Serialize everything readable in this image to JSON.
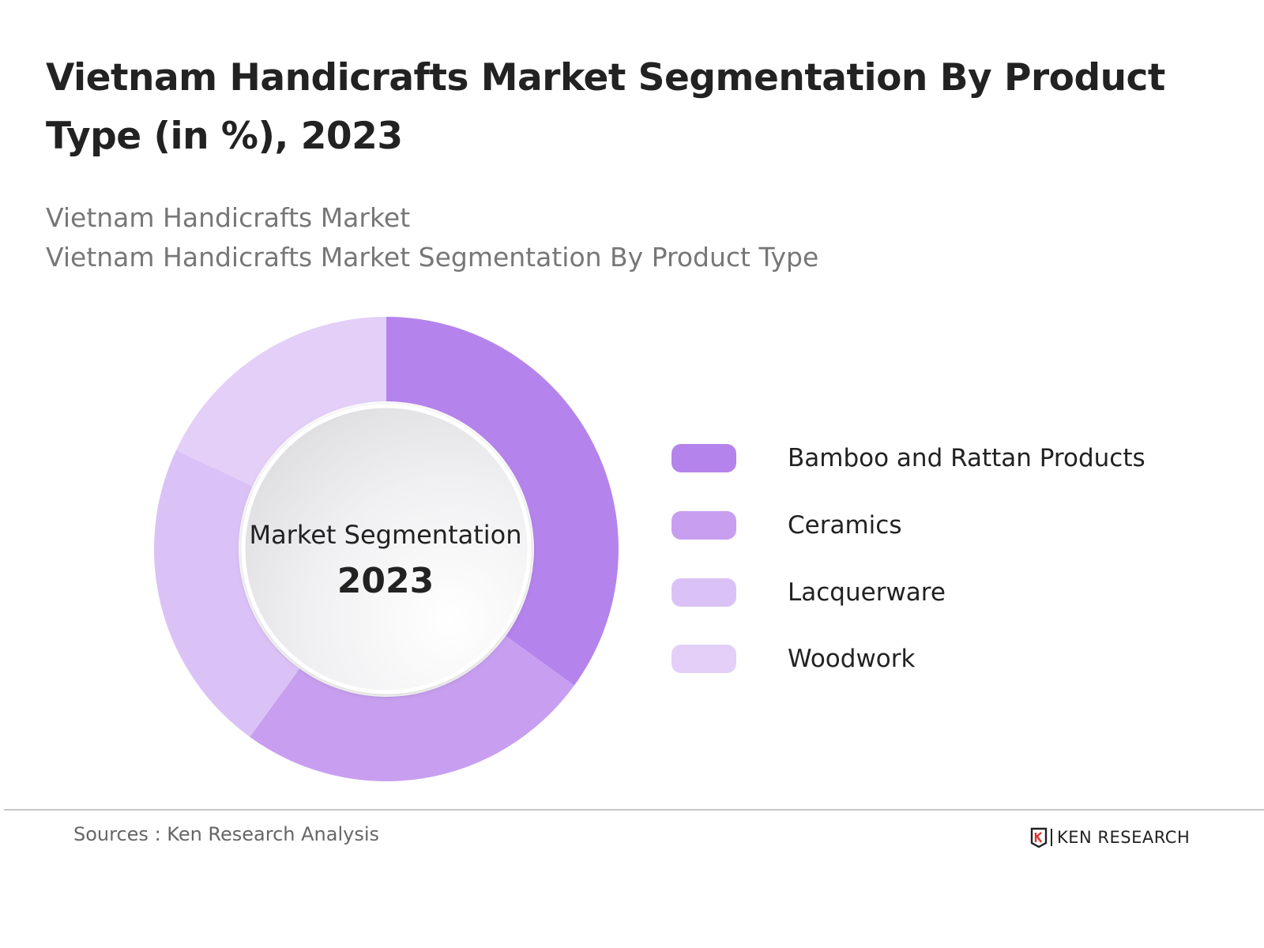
{
  "title": "Vietnam Handicrafts Market Segmentation By Product Type (in %), 2023",
  "subtitle_lines": [
    "Vietnam Handicrafts Market",
    "Vietnam Handicrafts Market Segmentation By Product Type"
  ],
  "center": {
    "label": "Market Segmentation",
    "year": "2023"
  },
  "chart_data": {
    "type": "pie",
    "style": "donut",
    "title": "Vietnam Handicrafts Market Segmentation By Product Type (in %), 2023",
    "categories": [
      "Bamboo and Rattan Products",
      "Ceramics",
      "Lacquerware",
      "Woodwork"
    ],
    "values": [
      35,
      25,
      22,
      18
    ],
    "unit": "%",
    "colors": [
      "#b484ec",
      "#c89ff0",
      "#dbc2f6",
      "#e4cff8"
    ],
    "start_angle": "12 o'clock",
    "direction": "clockwise",
    "legend_position": "right",
    "data_labels_shown": false
  },
  "legend": {
    "items": [
      {
        "label": "Bamboo and Rattan Products",
        "color": "#b484ec"
      },
      {
        "label": "Ceramics",
        "color": "#c89ff0"
      },
      {
        "label": "Lacquerware",
        "color": "#dbc2f6"
      },
      {
        "label": "Woodwork",
        "color": "#e4cff8"
      }
    ]
  },
  "footer": {
    "source": "Sources : Ken Research Analysis",
    "brand": "KEN RESEARCH",
    "brand_mark_icon": "ken-research-k-logo-icon"
  }
}
